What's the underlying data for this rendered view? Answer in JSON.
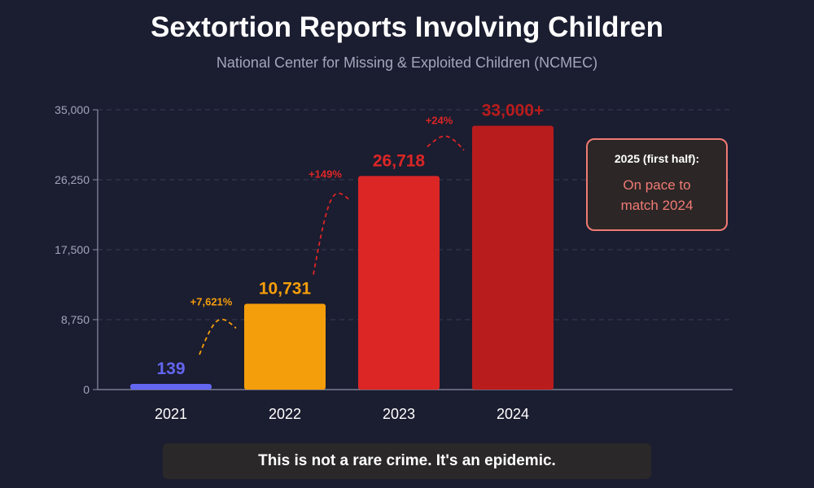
{
  "colors": {
    "background": "#1b1d30",
    "axis": "#8d90a6",
    "grid": "#3a3d55",
    "tick_text": "#a3a7bd"
  },
  "chart_data": {
    "type": "bar",
    "title": "Sextortion Reports Involving Children",
    "subtitle": "National Center for Missing & Exploited Children (NCMEC)",
    "xlabel": "",
    "ylabel": "",
    "ylim": [
      0,
      35000
    ],
    "y_ticks": [
      0,
      8750,
      17500,
      26250,
      35000
    ],
    "y_tick_labels": [
      "0",
      "8,750",
      "17,500",
      "26,250",
      "35,000"
    ],
    "grid": true,
    "categories": [
      "2021",
      "2022",
      "2023",
      "2024"
    ],
    "values": [
      139,
      10731,
      26718,
      33000
    ],
    "value_labels": [
      "139",
      "10,731",
      "26,718",
      "33,000+"
    ],
    "bar_colors": [
      "#6366f1",
      "#f59e0b",
      "#dc2626",
      "#b91c1c"
    ],
    "growth_annotations": [
      {
        "label": "+7,621%",
        "color": "#f59e0b"
      },
      {
        "label": "+149%",
        "color": "#dc2626"
      },
      {
        "label": "+24%",
        "color": "#dc2626"
      }
    ]
  },
  "note": {
    "title": "2025 (first half):",
    "body": "On pace to match 2024"
  },
  "banner": {
    "text": "This is not a rare crime. It's an epidemic."
  }
}
